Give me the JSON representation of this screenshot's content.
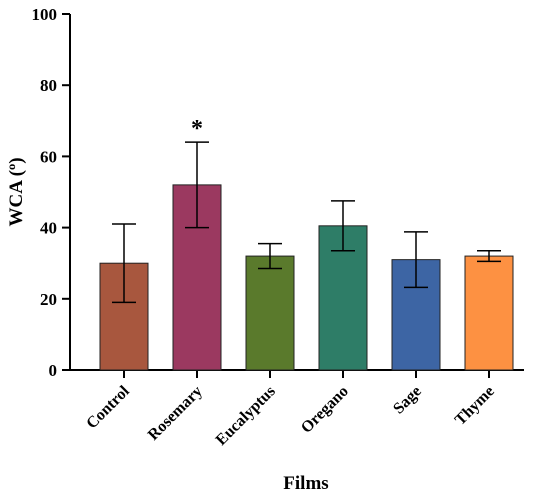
{
  "chart_data": {
    "type": "bar",
    "xlabel": "Films",
    "ylabel": "WCA (º)",
    "ylim": [
      0,
      100
    ],
    "yticks": [
      0,
      20,
      40,
      60,
      80,
      100
    ],
    "grid": false,
    "categories": [
      "Control",
      "Rosemary",
      "Eucalyptus",
      "Oregano",
      "Sage",
      "Thyme"
    ],
    "values": [
      30,
      52,
      32,
      40.5,
      31,
      32
    ],
    "errors": [
      11,
      12,
      3.5,
      7,
      7.8,
      1.5
    ],
    "colors": [
      "#a8573e",
      "#9b3960",
      "#5a7a2c",
      "#2e7d67",
      "#3d65a4",
      "#fd9142"
    ],
    "annotations": [
      {
        "category": "Rosemary",
        "text": "*"
      }
    ]
  }
}
